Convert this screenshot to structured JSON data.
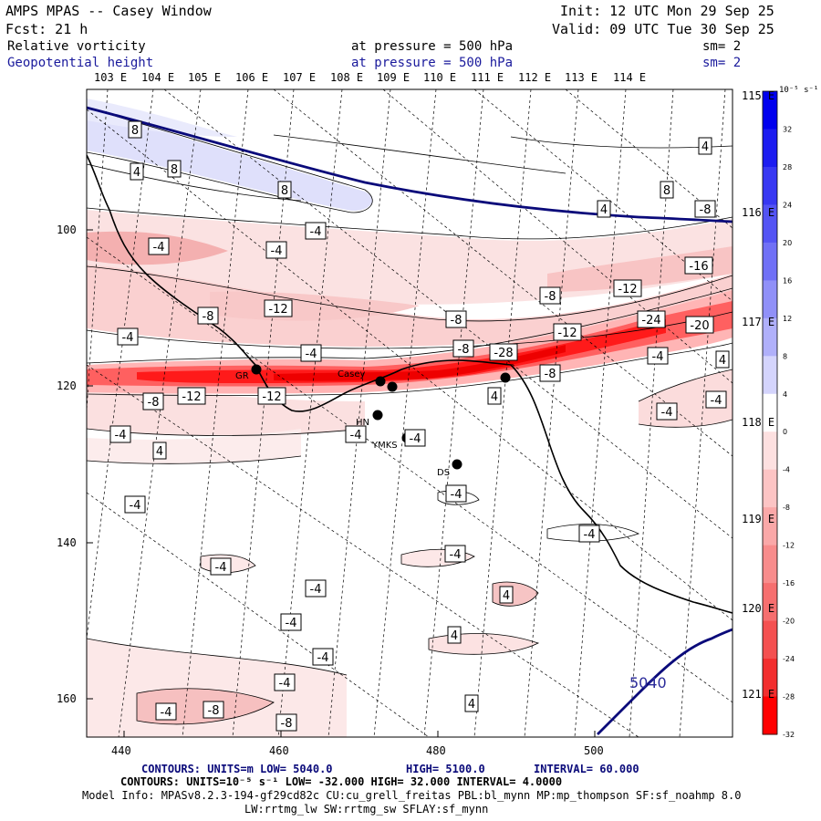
{
  "header": {
    "title": "AMPS MPAS -- Casey Window",
    "init": "Init: 12 UTC Mon 29 Sep 25",
    "forecast": "Fcst:   21 h",
    "valid": "Valid: 09 UTC Tue 30 Sep 25",
    "field1_name": "Relative vorticity",
    "field1_level": "at pressure =  500 hPa",
    "field1_sm": "sm= 2",
    "field2_name": "Geopotential height",
    "field2_level": "at pressure =  500 hPa",
    "field2_sm": "sm= 2"
  },
  "lon_top": [
    "103 E",
    "104 E",
    "105 E",
    "106 E",
    "107 E",
    "108 E",
    "109 E",
    "110 E",
    "111 E",
    "112 E",
    "113 E",
    "114 E"
  ],
  "lon_right": [
    "115 E",
    "116 E",
    "117 E",
    "118 E",
    "119 E",
    "120 E",
    "121 E"
  ],
  "grid_x": [
    "440",
    "460",
    "480",
    "500"
  ],
  "grid_y": [
    "100",
    "120",
    "140",
    "160"
  ],
  "stations": [
    {
      "id": "GR",
      "label": "GR"
    },
    {
      "id": "Casey",
      "label": "Casey"
    },
    {
      "id": "HN",
      "label": "HN"
    },
    {
      "id": "YMKS",
      "label": "YMKS"
    },
    {
      "id": "DS",
      "label": "DS"
    }
  ],
  "height_contour_label": "5040",
  "colorbar": {
    "unit": "10⁻⁵ s⁻¹",
    "ticks": [
      "32",
      "28",
      "24",
      "20",
      "16",
      "12",
      "8",
      "4",
      "0",
      "-4",
      "-8",
      "-12",
      "-16",
      "-20",
      "-24",
      "-28",
      "-32"
    ],
    "colors": {
      "pos_strong": "#0000ee",
      "neg_strong": "#ff0000",
      "neutral": "#ffffff"
    }
  },
  "contour_labels": [
    "8",
    "4",
    "8",
    "8",
    "4",
    "8",
    "4",
    "-4",
    "-4",
    "-8",
    "-4",
    "-16",
    "-12",
    "-8",
    "-12",
    "-8",
    "-24",
    "-20",
    "-12",
    "-4",
    "-8",
    "-8",
    "-28",
    "-4",
    "4",
    "-4",
    "-8",
    "-12",
    "-12",
    "-8",
    "4",
    "-4",
    "-4",
    "-4",
    "-4",
    "4",
    "-4",
    "-4",
    "-4",
    "-4",
    "-4",
    "-4",
    "4",
    "-4",
    "4",
    "-4",
    "-4",
    "4",
    "-4",
    "-8",
    "-8",
    "-4"
  ],
  "footer": {
    "line1_contours": "CONTOURS:  UNITS=m  LOW=  5040.0",
    "line1_high": "HIGH=  5100.0",
    "line1_interval": "INTERVAL=   60.000",
    "line2": "CONTOURS:  UNITS=10⁻⁵ s⁻¹  LOW= -32.000       HIGH=  32.000     INTERVAL=   4.0000",
    "line3": "Model Info: MPASv8.2.3-194-gf29cd82c CU:cu_grell_freitas PBL:bl_mynn MP:mp_thompson SF:sf_noahmp 8.0",
    "line4": "LW:rrtmg_lw SW:rrtmg_sw SFLAY:sf_mynn"
  }
}
